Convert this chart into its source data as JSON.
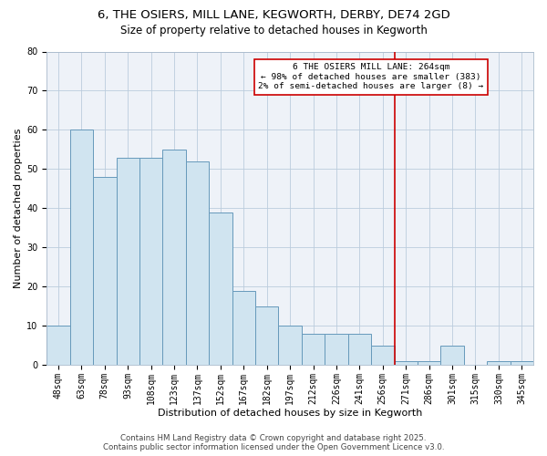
{
  "title_line1": "6, THE OSIERS, MILL LANE, KEGWORTH, DERBY, DE74 2GD",
  "title_line2": "Size of property relative to detached houses in Kegworth",
  "xlabel": "Distribution of detached houses by size in Kegworth",
  "ylabel": "Number of detached properties",
  "categories": [
    "48sqm",
    "63sqm",
    "78sqm",
    "93sqm",
    "108sqm",
    "123sqm",
    "137sqm",
    "152sqm",
    "167sqm",
    "182sqm",
    "197sqm",
    "212sqm",
    "226sqm",
    "241sqm",
    "256sqm",
    "271sqm",
    "286sqm",
    "301sqm",
    "315sqm",
    "330sqm",
    "345sqm"
  ],
  "values": [
    10,
    60,
    48,
    53,
    53,
    55,
    52,
    39,
    19,
    15,
    10,
    8,
    8,
    8,
    5,
    1,
    1,
    5,
    0,
    1,
    1
  ],
  "bar_color": "#d0e4f0",
  "bar_edge_color": "#6699bb",
  "vline_color": "#cc0000",
  "annotation_text": "6 THE OSIERS MILL LANE: 264sqm\n← 98% of detached houses are smaller (383)\n2% of semi-detached houses are larger (8) →",
  "annotation_box_color": "#cc0000",
  "ylim": [
    0,
    80
  ],
  "yticks": [
    0,
    10,
    20,
    30,
    40,
    50,
    60,
    70,
    80
  ],
  "grid_color": "#bbccdd",
  "background_color": "#eef2f8",
  "footer_text": "Contains HM Land Registry data © Crown copyright and database right 2025.\nContains public sector information licensed under the Open Government Licence v3.0.",
  "title_fontsize": 9.5,
  "subtitle_fontsize": 8.5,
  "axis_label_fontsize": 8,
  "tick_fontsize": 7,
  "annotation_fontsize": 6.8,
  "footer_fontsize": 6.2
}
